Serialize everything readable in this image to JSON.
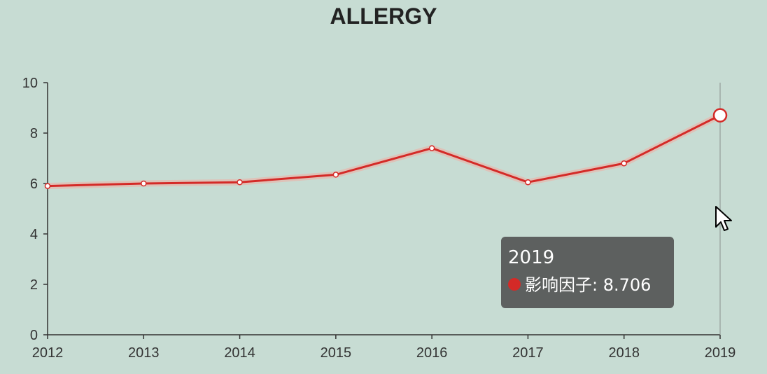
{
  "chart_data": {
    "type": "line",
    "title": "ALLERGY",
    "categories": [
      "2012",
      "2013",
      "2014",
      "2015",
      "2016",
      "2017",
      "2018",
      "2019"
    ],
    "series": [
      {
        "name": "影响因子",
        "values": [
          5.9,
          6.0,
          6.05,
          6.35,
          7.4,
          6.05,
          6.8,
          8.706
        ]
      }
    ],
    "ylim": [
      0,
      10
    ],
    "yticks": [
      0,
      2,
      4,
      6,
      8,
      10
    ],
    "grid": false,
    "colors": {
      "line": "#d42a27",
      "background": "#c7dcd3"
    }
  },
  "tooltip": {
    "title": "2019",
    "series_name": "影响因子",
    "value": "8.706",
    "separator": ": "
  }
}
